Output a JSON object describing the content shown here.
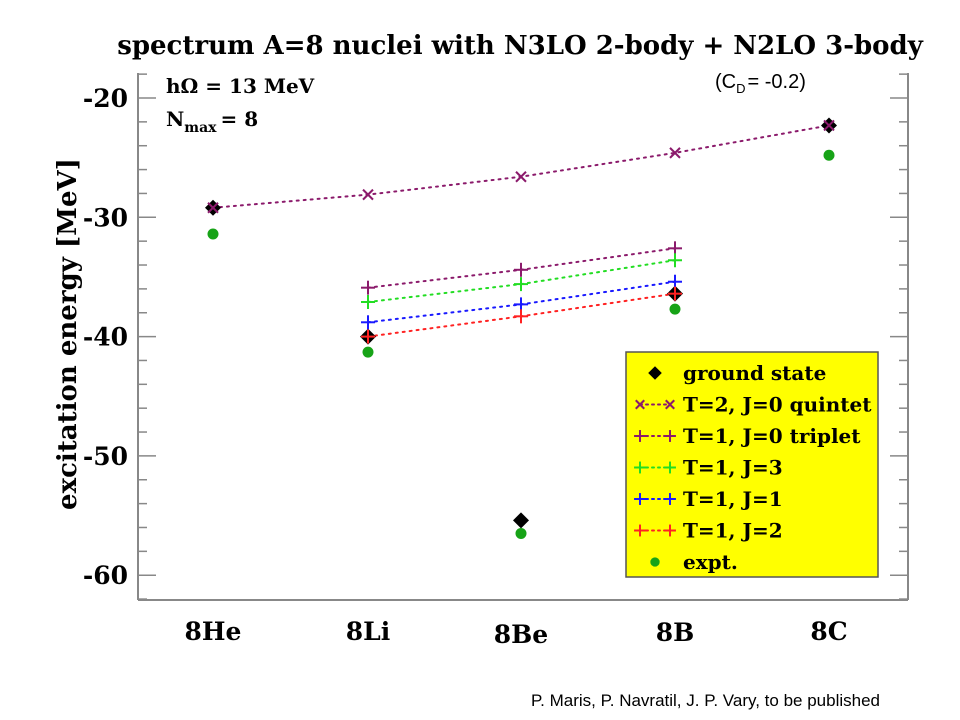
{
  "chart_data": {
    "type": "scatter",
    "title": "spectrum A=8 nuclei with N3LO 2-body + N2LO 3-body",
    "ylabel": "excitation energy [MeV]",
    "xlabel": "",
    "categories": [
      "8He",
      "8Li",
      "8Be",
      "8B",
      "8C"
    ],
    "ylim": [
      -62,
      -18
    ],
    "yticks": [
      -20,
      -30,
      -40,
      -50,
      -60
    ],
    "ytick_labels": [
      "-20",
      "-30",
      "-40",
      "-50",
      "-60"
    ],
    "params": {
      "hw_label": "hΩ = 13 MeV",
      "nmax_prefix": "N",
      "nmax_sub": "max",
      "nmax_value": "= 8",
      "cd_open": "(C",
      "cd_sub": "D",
      "cd_value": "= -0.2)"
    },
    "series": [
      {
        "name": "T=2, J=0 quintet",
        "marker": "x",
        "color": "#8B1A6B",
        "dotted_line": true,
        "values": [
          -29.2,
          -28.1,
          -26.6,
          -24.6,
          -22.3
        ]
      },
      {
        "name": "T=1, J=0 triplet",
        "marker": "+",
        "color": "#8B1A6B",
        "dotted_line": true,
        "values": [
          null,
          -35.9,
          -34.4,
          -32.6,
          null
        ]
      },
      {
        "name": "T=1, J=3",
        "marker": "+",
        "color": "#22DD22",
        "dotted_line": true,
        "values": [
          null,
          -37.1,
          -35.6,
          -33.6,
          null
        ]
      },
      {
        "name": "T=1, J=1",
        "marker": "+",
        "color": "#1A1AFF",
        "dotted_line": true,
        "values": [
          null,
          -38.8,
          -37.3,
          -35.4,
          null
        ]
      },
      {
        "name": "T=1, J=2",
        "marker": "+",
        "color": "#FF2222",
        "dotted_line": true,
        "values": [
          null,
          -40.0,
          -38.3,
          -36.4,
          null
        ]
      },
      {
        "name": "ground state",
        "marker": "diamond",
        "color": "#000000",
        "dotted_line": false,
        "values": [
          -29.2,
          -40.0,
          -55.4,
          -36.4,
          -22.3
        ]
      },
      {
        "name": "expt.",
        "marker": "dot",
        "color": "#17A317",
        "dotted_line": false,
        "values": [
          -31.4,
          -41.3,
          -56.5,
          -37.7,
          -24.8
        ]
      }
    ],
    "legend": {
      "placement": "lower-right",
      "background": "#FFFF00",
      "entries": [
        "ground state",
        "T=2, J=0 quintet",
        "T=1, J=0 triplet",
        "T=1, J=3",
        "T=1, J=1",
        "T=1, J=2",
        "expt."
      ]
    }
  },
  "credit": "P. Maris, P. Navratil, J. P. Vary, to be published"
}
